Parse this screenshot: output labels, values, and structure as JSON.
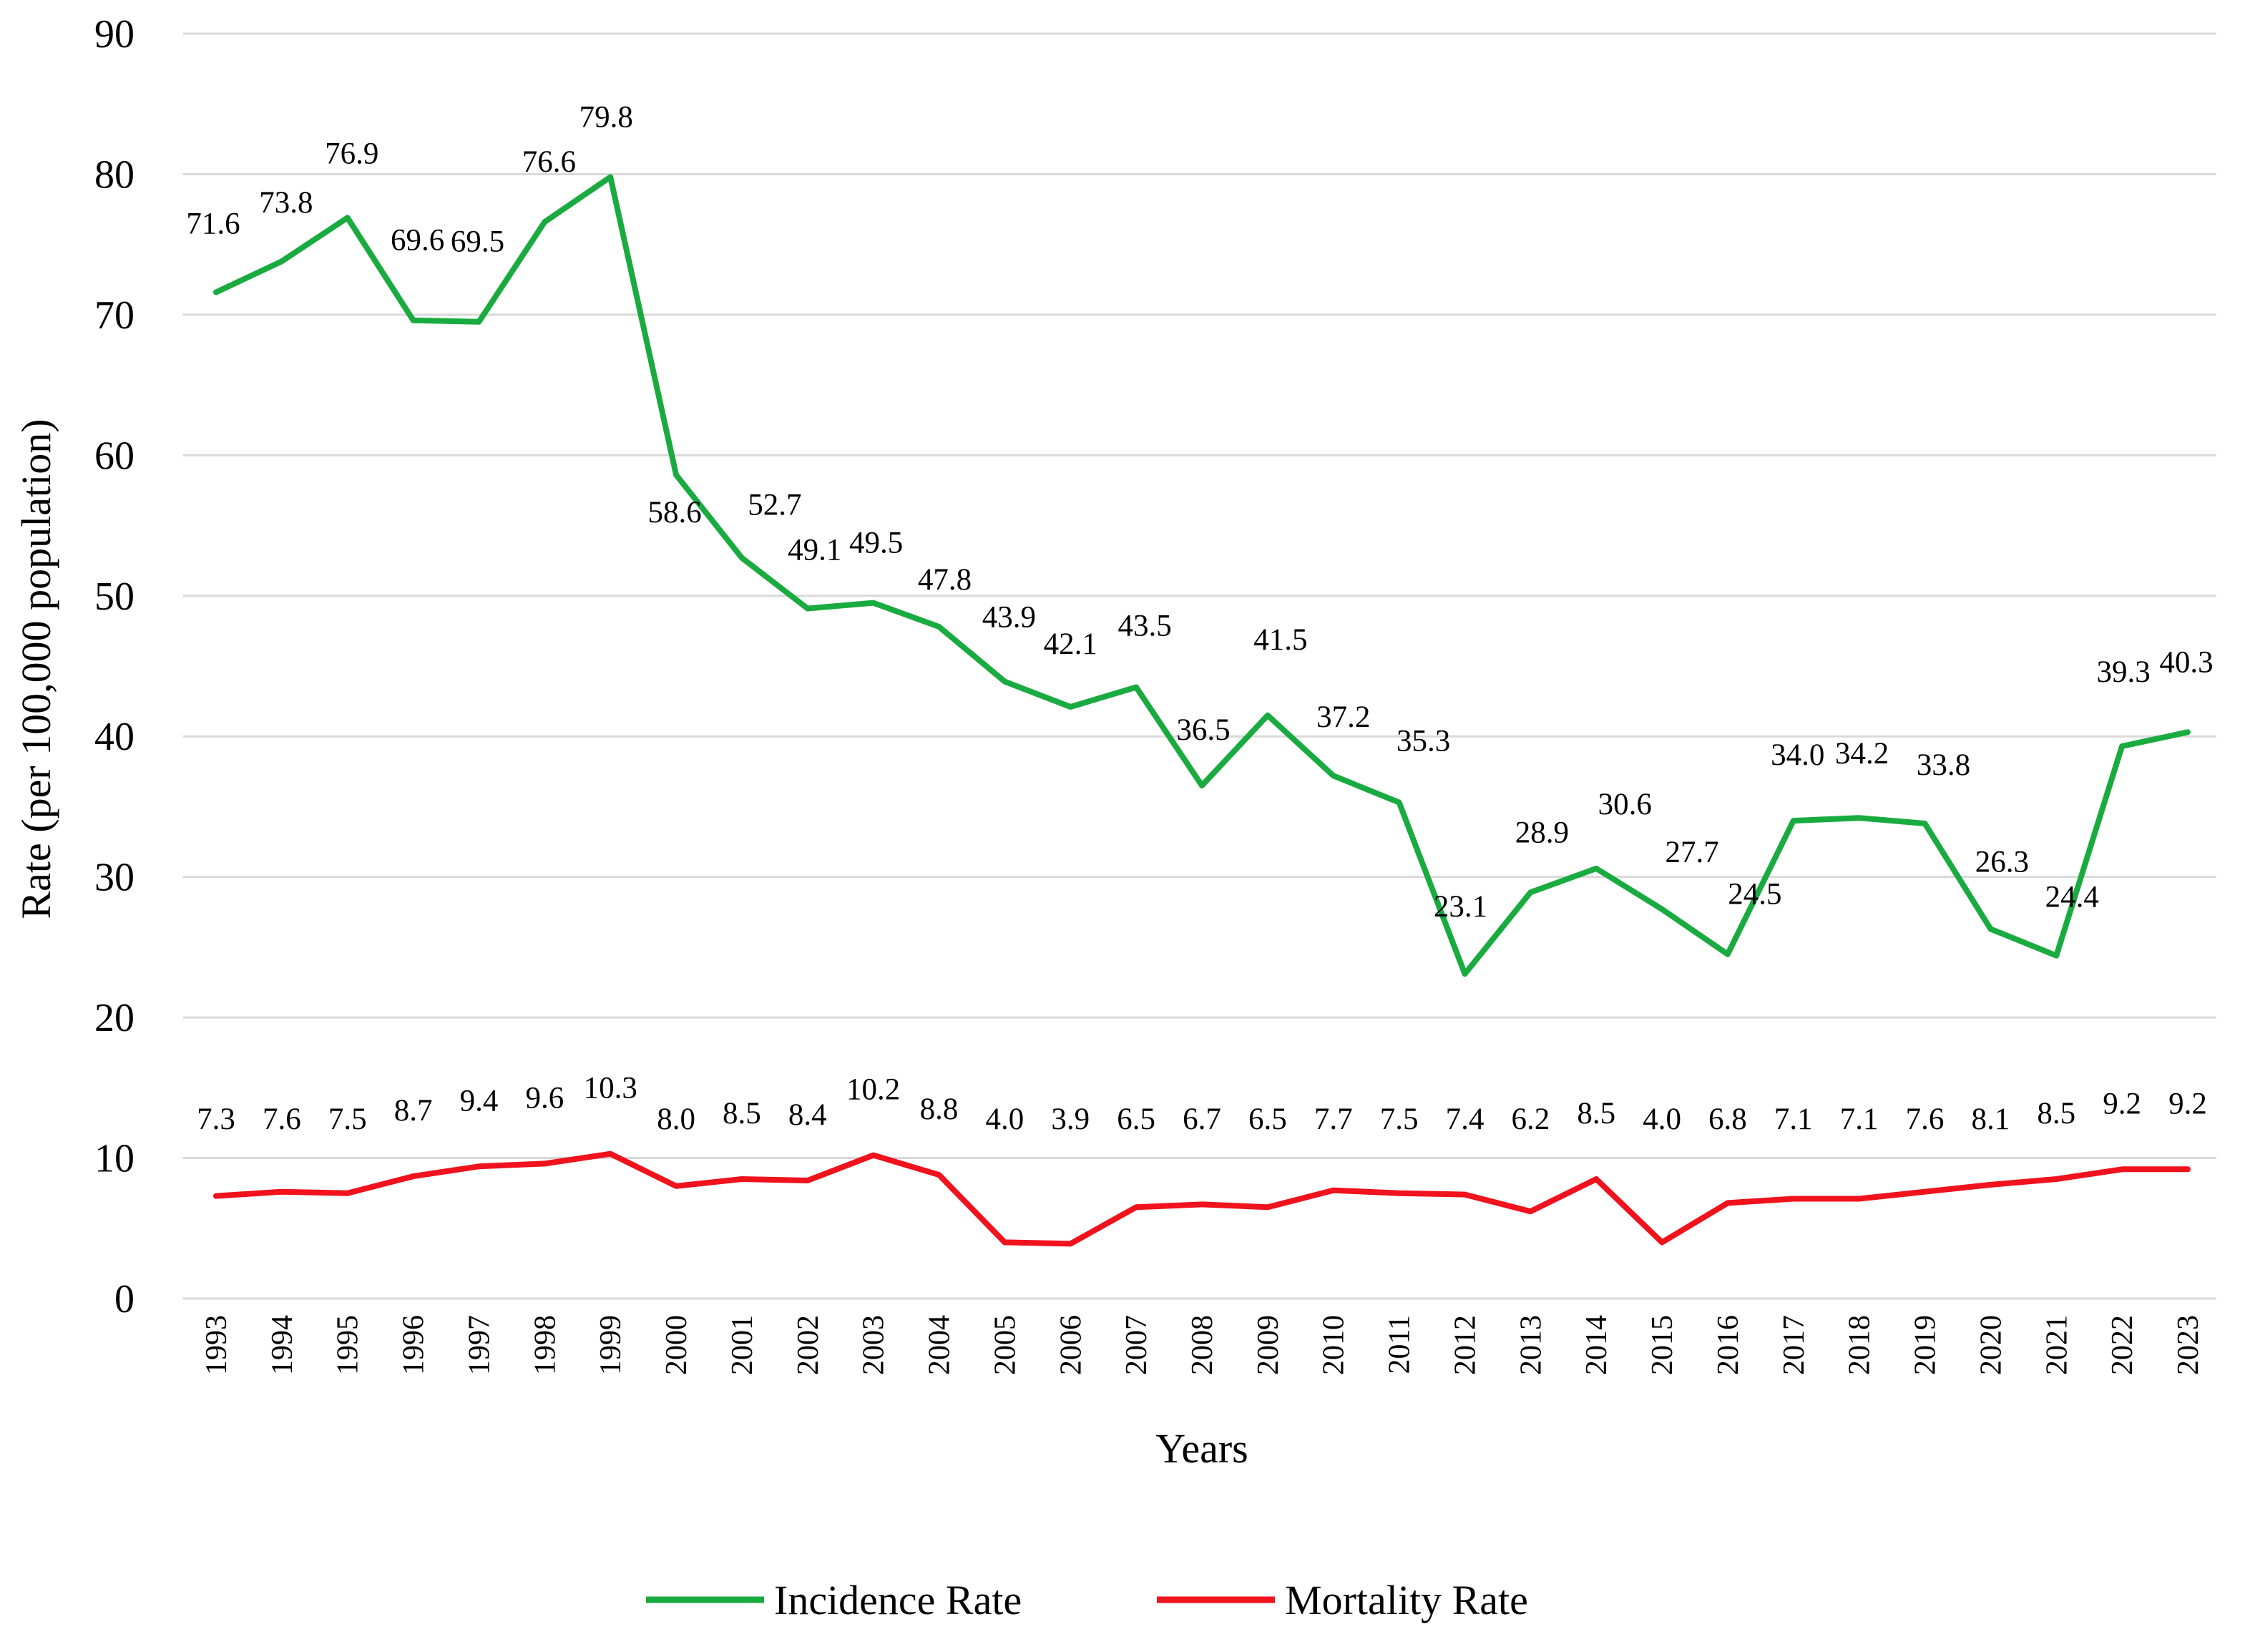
{
  "chart_data": {
    "type": "line",
    "title": "",
    "xlabel": "Years",
    "ylabel": "Rate (per 100,000 population)",
    "ylim": [
      0,
      90
    ],
    "ytick_step": 10,
    "grid": true,
    "legend_position": "bottom",
    "categories": [
      "1993",
      "1994",
      "1995",
      "1996",
      "1997",
      "1998",
      "1999",
      "2000",
      "2001",
      "2002",
      "2003",
      "2004",
      "2005",
      "2006",
      "2007",
      "2008",
      "2009",
      "2010",
      "2011",
      "2012",
      "2013",
      "2014",
      "2015",
      "2016",
      "2017",
      "2018",
      "2019",
      "2020",
      "2021",
      "2022",
      "2023"
    ],
    "series": [
      {
        "name": "Incidence Rate",
        "color": "#1aab40",
        "values": [
          71.6,
          73.8,
          76.9,
          69.6,
          69.5,
          76.6,
          79.8,
          58.6,
          52.7,
          49.1,
          49.5,
          47.8,
          43.9,
          42.1,
          43.5,
          36.5,
          41.5,
          37.2,
          35.3,
          23.1,
          28.9,
          30.6,
          27.7,
          24.5,
          34.0,
          34.2,
          33.8,
          26.3,
          24.4,
          39.3,
          40.3
        ],
        "labels": [
          "71.6",
          "73.8",
          "76.9",
          "69.6",
          "69.5",
          "76.6",
          "79.8",
          "58.6",
          "52.7",
          "49.1",
          "49.5",
          "47.8",
          "43.9",
          "42.1",
          "43.5",
          "36.5",
          "41.5",
          "37.2",
          "35.3",
          "23.1",
          "28.9",
          "30.6",
          "27.7",
          "24.5",
          "34.0",
          "34.2",
          "33.8",
          "26.3",
          "24.4",
          "39.3",
          "40.3"
        ]
      },
      {
        "name": "Mortality Rate",
        "color": "#f0121c",
        "values": [
          7.3,
          7.6,
          7.5,
          8.7,
          9.4,
          9.6,
          10.3,
          8.0,
          8.5,
          8.4,
          10.2,
          8.8,
          4.0,
          3.9,
          6.5,
          6.7,
          6.5,
          7.7,
          7.5,
          7.4,
          6.2,
          8.5,
          4.0,
          6.8,
          7.1,
          7.1,
          7.6,
          8.1,
          8.5,
          9.2,
          9.2
        ],
        "labels": [
          "7.3",
          "7.6",
          "7.5",
          "8.7",
          "9.4",
          "9.6",
          "10.3",
          "8.0",
          "8.5",
          "8.4",
          "10.2",
          "8.8",
          "4.0",
          "3.9",
          "6.5",
          "6.7",
          "6.5",
          "7.7",
          "7.5",
          "7.4",
          "6.2",
          "8.5",
          "4.0",
          "6.8",
          "7.1",
          "7.1",
          "7.6",
          "8.1",
          "8.5",
          "9.2",
          "9.2"
        ]
      }
    ]
  }
}
